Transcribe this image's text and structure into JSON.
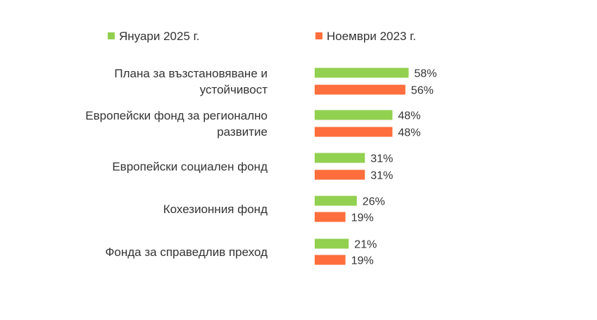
{
  "chart_data": {
    "type": "bar",
    "orientation": "horizontal",
    "legend_position": "top",
    "grid": false,
    "value_suffix": "%",
    "xlim": [
      0,
      100
    ],
    "categories": [
      [
        "Плана за възстановяване и",
        "устойчивост"
      ],
      [
        "Европейски фонд за регионално",
        "развитие"
      ],
      [
        "Европейски социален фонд"
      ],
      [
        "Кохезионния фонд"
      ],
      [
        "Фонда за справедлив преход"
      ]
    ],
    "series": [
      {
        "name": "Януари 2025 г.",
        "color": "#92d050",
        "values": [
          58,
          48,
          31,
          26,
          21
        ]
      },
      {
        "name": "Ноември 2023 г.",
        "color": "#ff6e3c",
        "values": [
          56,
          48,
          31,
          19,
          19
        ]
      }
    ]
  }
}
